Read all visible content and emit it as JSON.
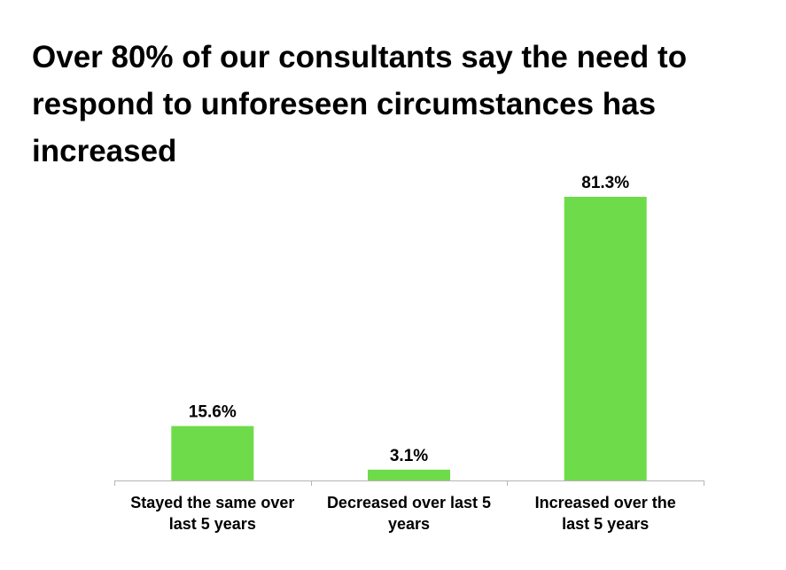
{
  "chart_data": {
    "type": "bar",
    "title": "Over 80% of our consultants say the need to respond to unforeseen circumstances has increased",
    "categories": [
      [
        "Stayed the same over",
        "last 5 years"
      ],
      [
        "Decreased over last 5",
        "years"
      ],
      [
        "Increased over the",
        "last 5 years"
      ]
    ],
    "values": [
      15.6,
      3.1,
      81.3
    ],
    "value_labels": [
      "15.6%",
      "3.1%",
      "81.3%"
    ],
    "ylim": [
      0,
      100
    ],
    "grid": false,
    "legend": "none",
    "colors": {
      "bar": "#6edc4a",
      "axis": "#b5b5b5",
      "text": "#000000"
    }
  }
}
